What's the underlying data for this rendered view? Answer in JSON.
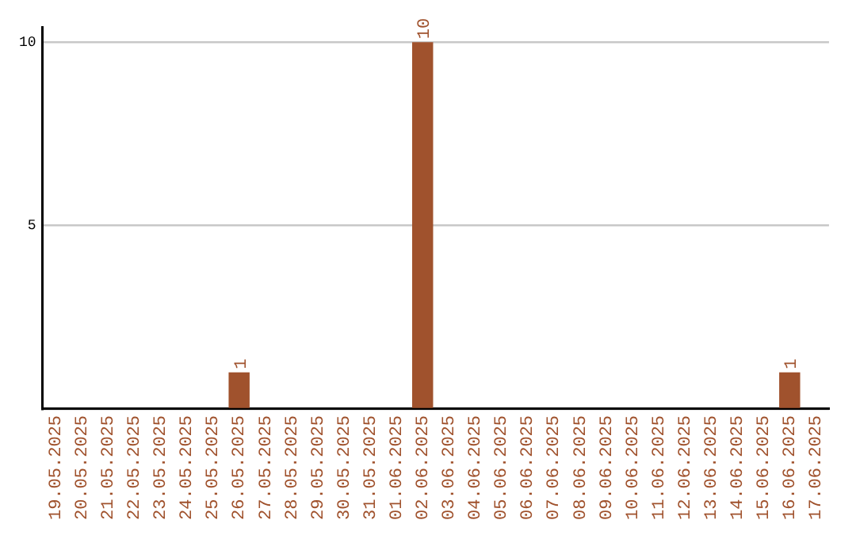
{
  "chart_data": {
    "type": "bar",
    "categories": [
      "19.05.2025",
      "20.05.2025",
      "21.05.2025",
      "22.05.2025",
      "23.05.2025",
      "24.05.2025",
      "25.05.2025",
      "26.05.2025",
      "27.05.2025",
      "28.05.2025",
      "29.05.2025",
      "30.05.2025",
      "31.05.2025",
      "01.06.2025",
      "02.06.2025",
      "03.06.2025",
      "04.06.2025",
      "05.06.2025",
      "06.06.2025",
      "07.06.2025",
      "08.06.2025",
      "09.06.2025",
      "10.06.2025",
      "11.06.2025",
      "12.06.2025",
      "13.06.2025",
      "14.06.2025",
      "15.06.2025",
      "16.06.2025",
      "17.06.2025"
    ],
    "values": [
      0,
      0,
      0,
      0,
      0,
      0,
      0,
      1,
      0,
      0,
      0,
      0,
      0,
      0,
      10,
      0,
      0,
      0,
      0,
      0,
      0,
      0,
      0,
      0,
      0,
      0,
      0,
      0,
      1,
      0
    ],
    "value_labels": [
      null,
      null,
      null,
      null,
      null,
      null,
      null,
      "1",
      null,
      null,
      null,
      null,
      null,
      null,
      "10",
      null,
      null,
      null,
      null,
      null,
      null,
      null,
      null,
      null,
      null,
      null,
      null,
      null,
      "1",
      null
    ],
    "color": "#a0522d",
    "ylim": [
      0,
      10.4
    ],
    "yticks": [
      {
        "value": 0,
        "label": null
      },
      5,
      10
    ],
    "grid": "y",
    "legend": false
  }
}
